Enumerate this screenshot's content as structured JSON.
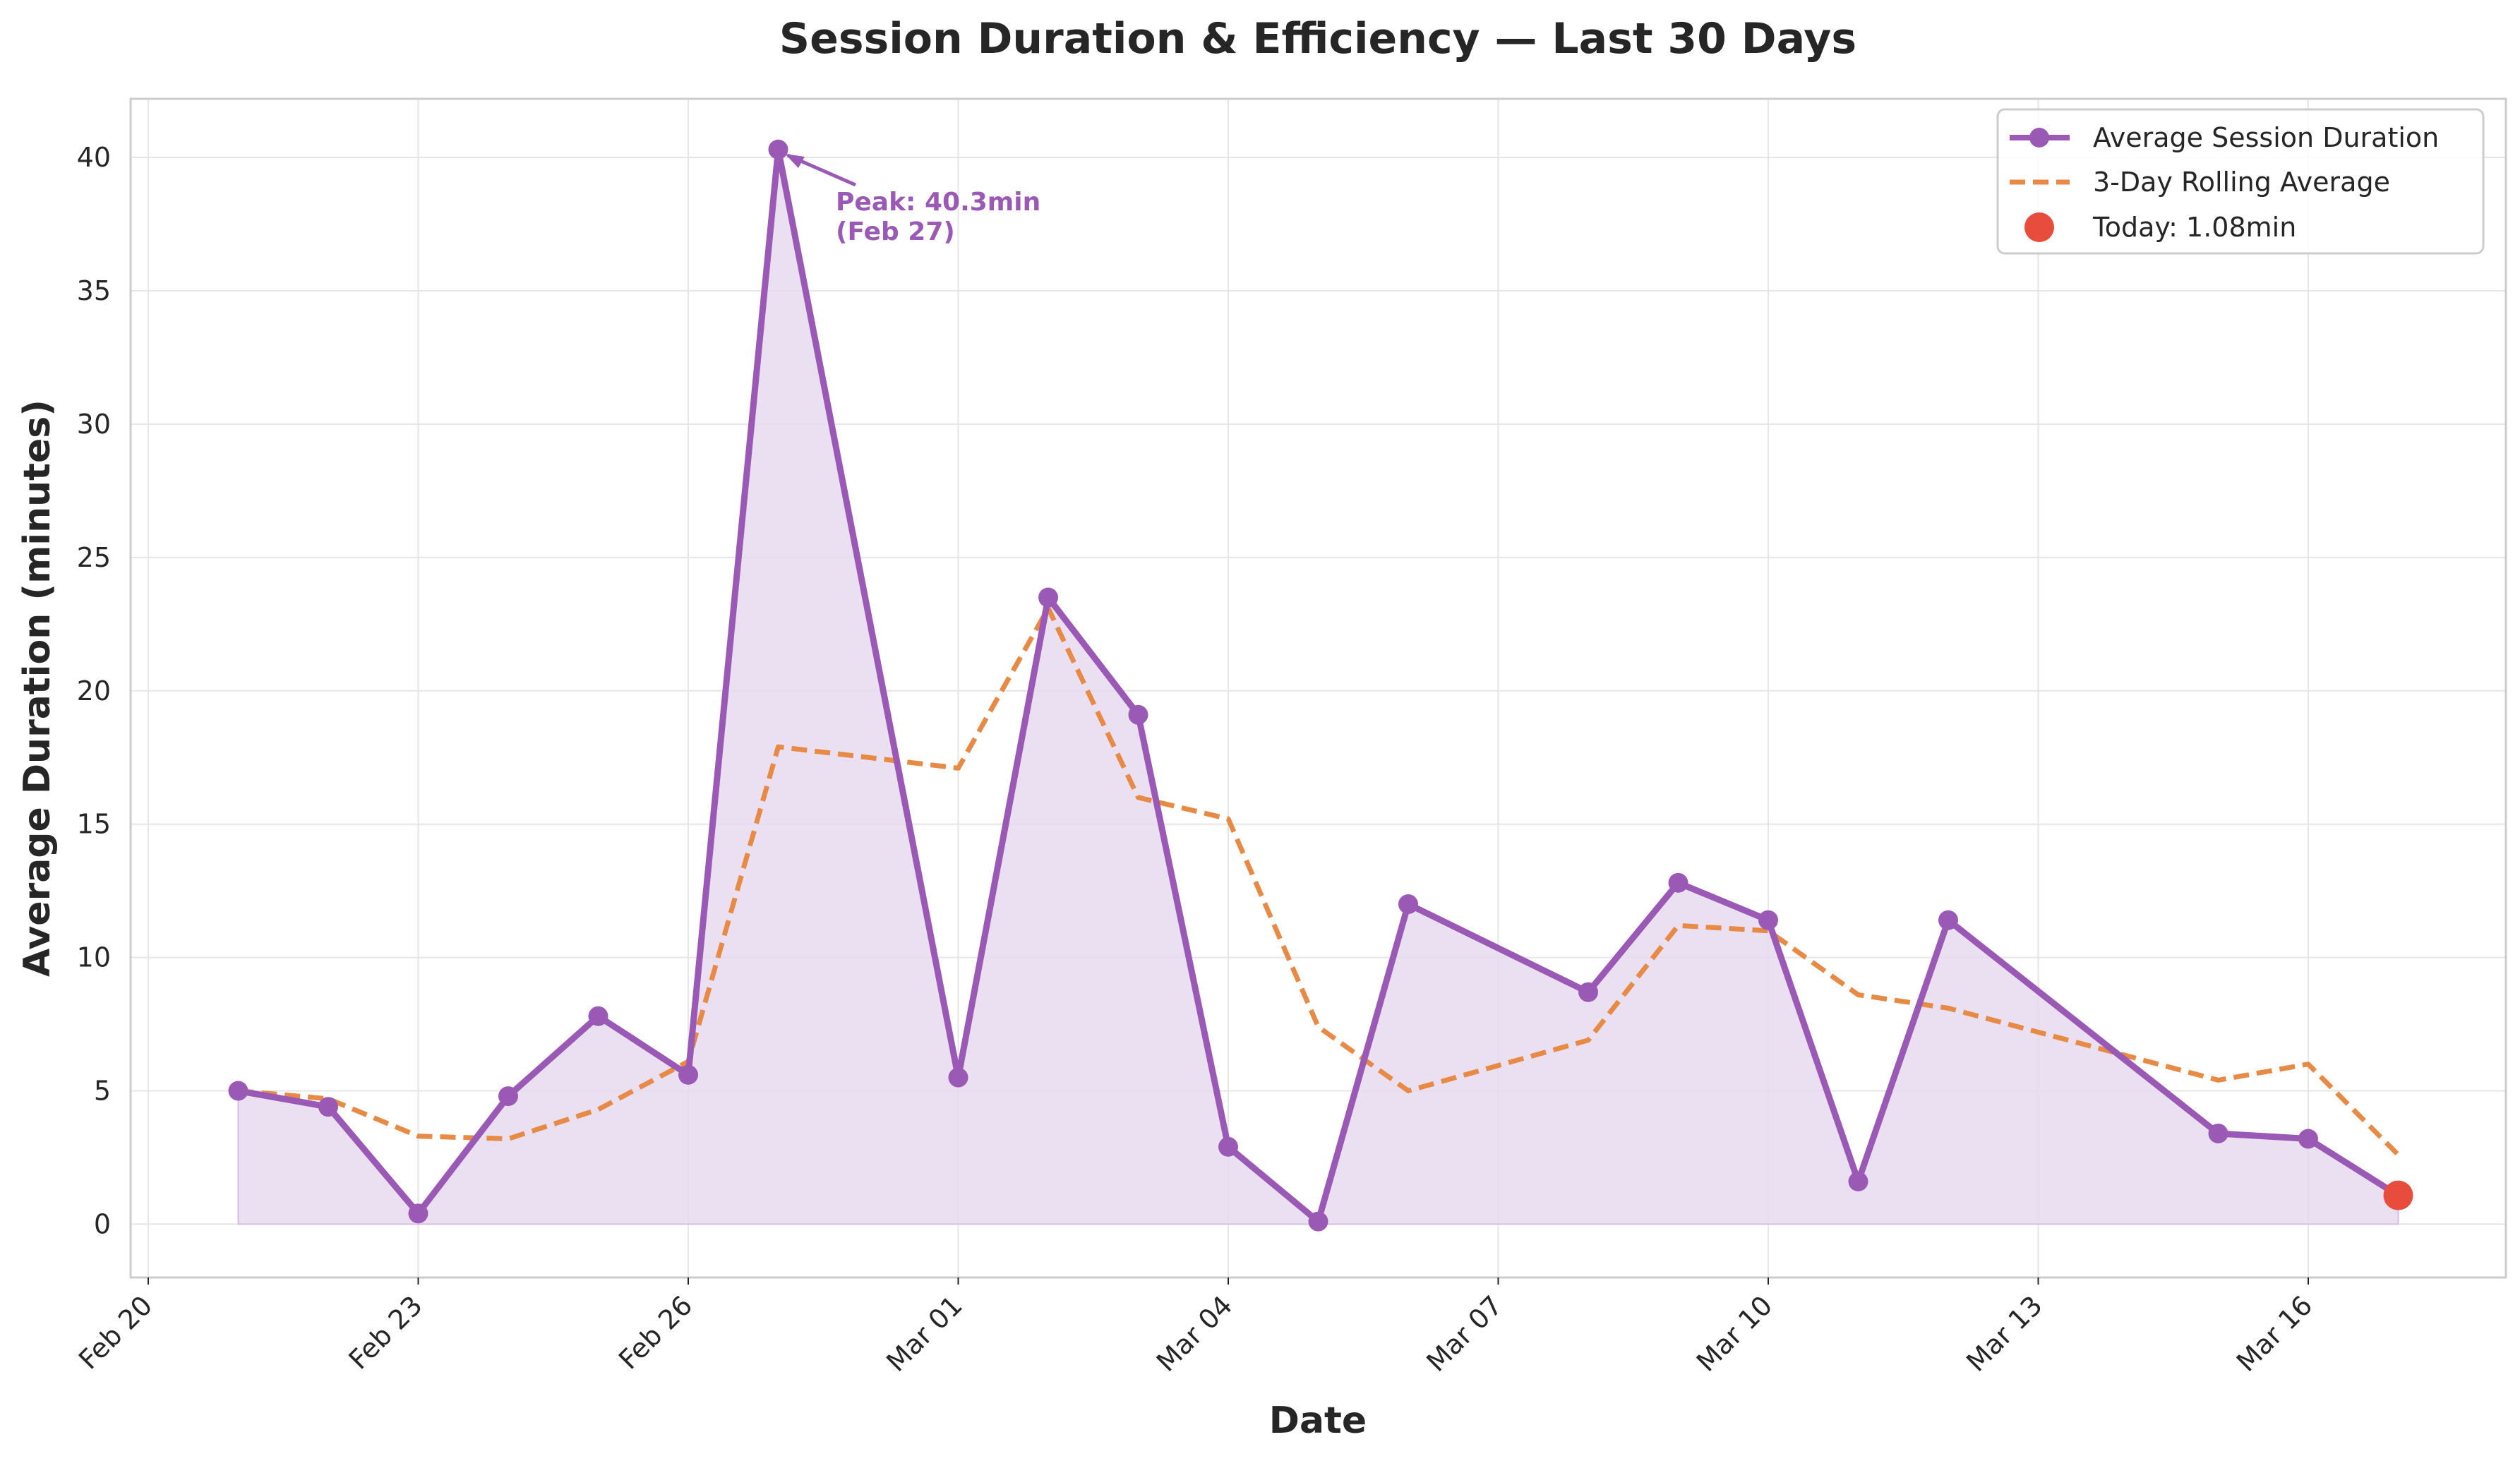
{
  "chart_data": {
    "type": "line",
    "title": "Session Duration & Efficiency — Last 30 Days",
    "xlabel": "Date",
    "ylabel": "Average Duration (minutes)",
    "x_ticks": [
      "Feb 20",
      "Feb 23",
      "Feb 26",
      "Mar 01",
      "Mar 04",
      "Mar 07",
      "Mar 10",
      "Mar 13",
      "Mar 16"
    ],
    "x_tick_dates": [
      "2025-02-20",
      "2025-02-23",
      "2025-02-26",
      "2025-03-01",
      "2025-03-04",
      "2025-03-07",
      "2025-03-10",
      "2025-03-13",
      "2025-03-16"
    ],
    "x_range": [
      "2025-02-20",
      "2025-03-18"
    ],
    "ylim": [
      -2,
      42.2
    ],
    "y_ticks": [
      0,
      5,
      10,
      15,
      20,
      25,
      30,
      35,
      40
    ],
    "grid": true,
    "legend_position": "top-right",
    "colors": {
      "series": "#9b59b6",
      "fill": "#e8daef",
      "rolling": "#e68a45",
      "today": "#e74c3c",
      "grid": "#e5e5e5",
      "axes": "#cccccc",
      "text": "#262626"
    },
    "series": [
      {
        "name": "Average Session Duration",
        "x": [
          "2025-02-21",
          "2025-02-22",
          "2025-02-23",
          "2025-02-24",
          "2025-02-25",
          "2025-02-26",
          "2025-02-27",
          "2025-03-01",
          "2025-03-02",
          "2025-03-03",
          "2025-03-04",
          "2025-03-05",
          "2025-03-06",
          "2025-03-08",
          "2025-03-09",
          "2025-03-10",
          "2025-03-11",
          "2025-03-12",
          "2025-03-15",
          "2025-03-16",
          "2025-03-17"
        ],
        "values": [
          5.0,
          4.4,
          0.4,
          4.8,
          7.8,
          5.6,
          40.3,
          5.5,
          23.5,
          19.1,
          2.9,
          0.1,
          12.0,
          8.7,
          12.8,
          11.4,
          1.6,
          11.4,
          3.4,
          3.2,
          1.08
        ]
      },
      {
        "name": "3-Day Rolling Average",
        "x": [
          "2025-02-21",
          "2025-02-22",
          "2025-02-23",
          "2025-02-24",
          "2025-02-25",
          "2025-02-26",
          "2025-02-27",
          "2025-03-01",
          "2025-03-02",
          "2025-03-03",
          "2025-03-04",
          "2025-03-05",
          "2025-03-06",
          "2025-03-08",
          "2025-03-09",
          "2025-03-10",
          "2025-03-11",
          "2025-03-12",
          "2025-03-15",
          "2025-03-16",
          "2025-03-17"
        ],
        "values": [
          5.0,
          4.7,
          3.3,
          3.2,
          4.3,
          6.1,
          17.9,
          17.1,
          23.1,
          16.0,
          15.2,
          7.4,
          5.0,
          6.9,
          11.2,
          11.0,
          8.6,
          8.1,
          5.4,
          6.0,
          2.6
        ]
      }
    ],
    "today_point": {
      "label": "Today: 1.08min",
      "x": "2025-03-17",
      "value": 1.08
    },
    "annotation": {
      "line1": "Peak: 40.3min",
      "line2": "(Feb 27)",
      "x": "2025-02-27",
      "value": 40.3
    }
  }
}
